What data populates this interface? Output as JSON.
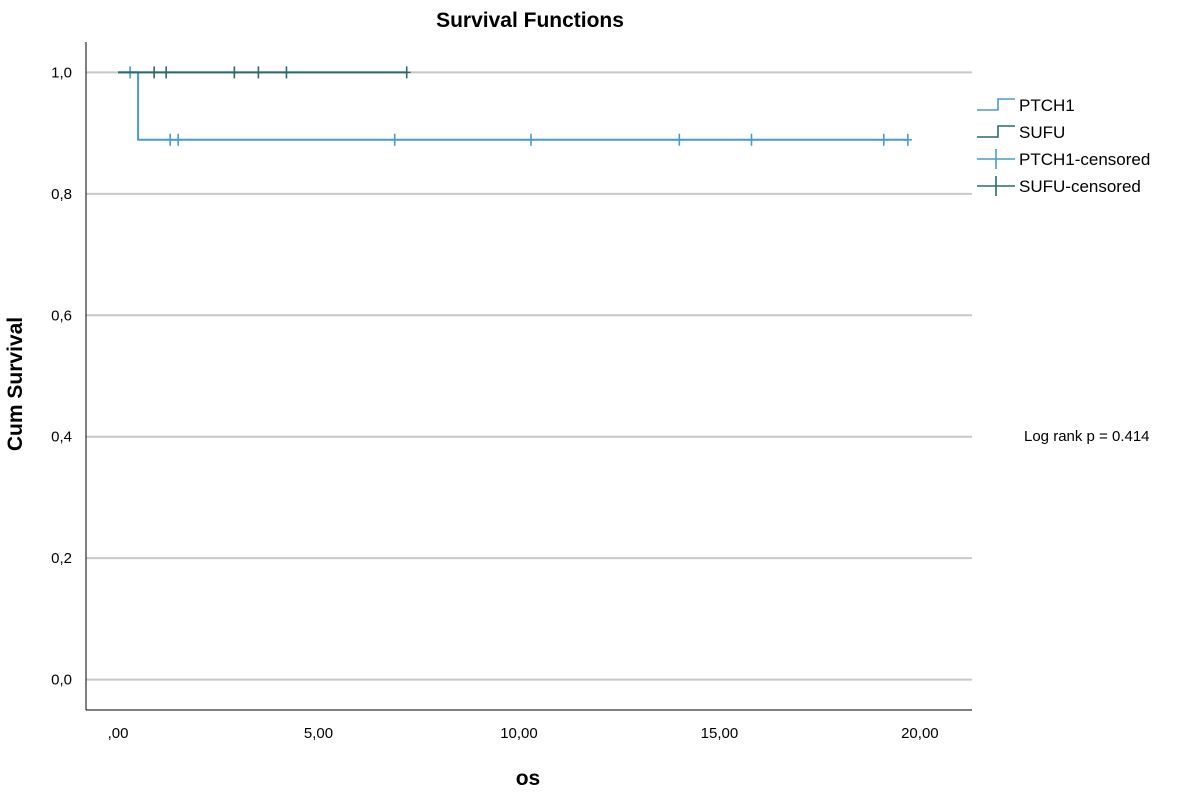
{
  "chart_data": {
    "type": "line",
    "title": "Survival Functions",
    "xlabel": "os",
    "ylabel": "Cum Survival",
    "xlim": [
      -0.8,
      21.3
    ],
    "ylim": [
      -0.05,
      1.05
    ],
    "x_ticks": [
      0,
      5,
      10,
      15,
      20
    ],
    "x_tick_labels": [
      ",00",
      "5,00",
      "10,00",
      "15,00",
      "20,00"
    ],
    "y_ticks": [
      0,
      0.2,
      0.4,
      0.6,
      0.8,
      1.0
    ],
    "y_tick_labels": [
      "0,0",
      "0,2",
      "0,4",
      "0,6",
      "0,8",
      "1,0"
    ],
    "grid": "horizontal",
    "legend_position": "right",
    "series": [
      {
        "name": "PTCH1",
        "color": "#4a9cc8",
        "steps": [
          [
            0.0,
            1.0
          ],
          [
            0.5,
            1.0
          ],
          [
            0.5,
            0.889
          ],
          [
            19.7,
            0.889
          ]
        ],
        "censored_name": "PTCH1-censored",
        "censored": [
          [
            0.3,
            1.0
          ],
          [
            1.3,
            0.889
          ],
          [
            1.5,
            0.889
          ],
          [
            6.9,
            0.889
          ],
          [
            10.3,
            0.889
          ],
          [
            14.0,
            0.889
          ],
          [
            15.8,
            0.889
          ],
          [
            19.1,
            0.889
          ],
          [
            19.7,
            0.889
          ]
        ]
      },
      {
        "name": "SUFU",
        "color": "#2a6b6c",
        "steps": [
          [
            0.0,
            1.0
          ],
          [
            7.2,
            1.0
          ]
        ],
        "censored_name": "SUFU-censored",
        "censored": [
          [
            0.9,
            1.0
          ],
          [
            1.2,
            1.0
          ],
          [
            2.9,
            1.0
          ],
          [
            3.5,
            1.0
          ],
          [
            4.2,
            1.0
          ],
          [
            7.2,
            1.0
          ]
        ]
      }
    ],
    "annotations": [
      "Log rank p = 0.414"
    ]
  }
}
